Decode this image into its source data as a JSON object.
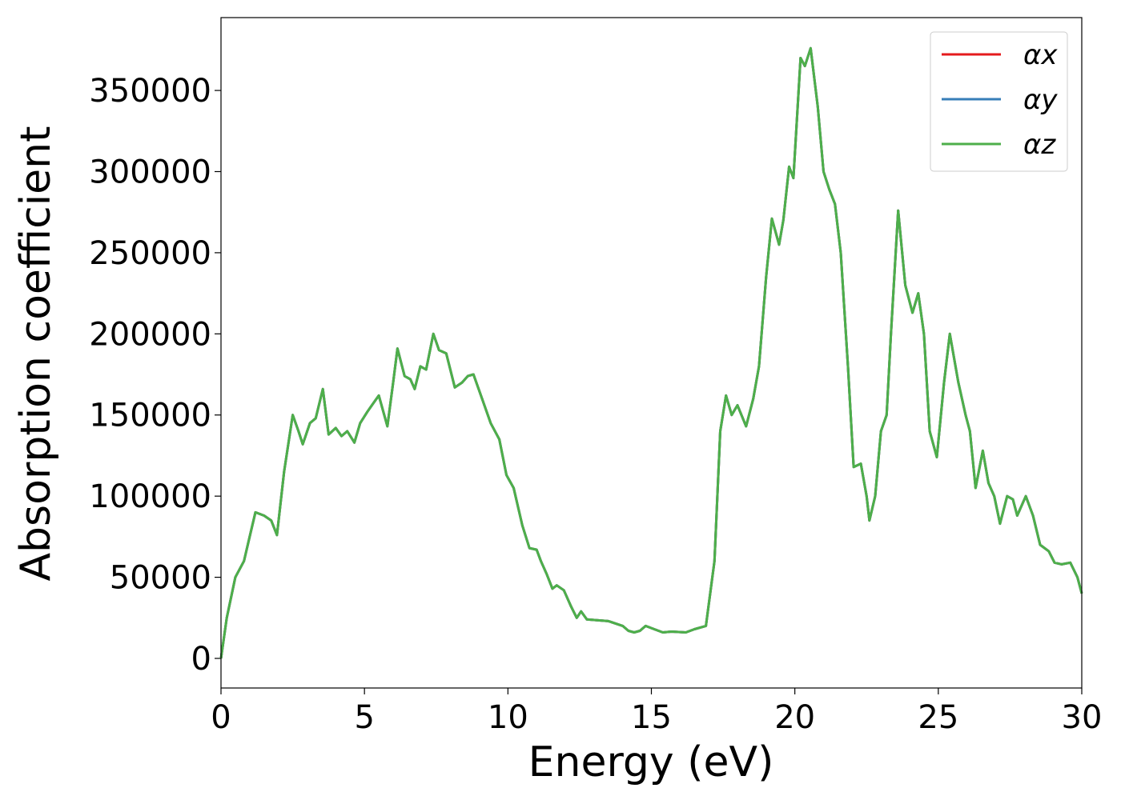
{
  "chart_data": {
    "type": "line",
    "xlabel": "Energy (eV)",
    "ylabel": "Absorption coefficient",
    "xlim": [
      0,
      30
    ],
    "xticks": [
      0,
      5,
      10,
      15,
      20,
      25,
      30
    ],
    "ylim": [
      -18240,
      394900
    ],
    "yticks": [
      0,
      50000,
      100000,
      150000,
      200000,
      250000,
      300000,
      350000
    ],
    "grid": false,
    "legend": "upper right",
    "x": [
      0,
      0.2,
      0.5,
      0.8,
      1.0,
      1.2,
      1.5,
      1.75,
      1.95,
      2.2,
      2.5,
      2.7,
      2.85,
      3.1,
      3.3,
      3.55,
      3.75,
      4.0,
      4.2,
      4.4,
      4.65,
      4.85,
      5.1,
      5.3,
      5.5,
      5.8,
      6.0,
      6.15,
      6.4,
      6.6,
      6.75,
      6.95,
      7.15,
      7.4,
      7.6,
      7.85,
      8.15,
      8.4,
      8.6,
      8.8,
      9.1,
      9.4,
      9.7,
      9.95,
      10.2,
      10.5,
      10.75,
      11.0,
      11.15,
      11.35,
      11.55,
      11.7,
      11.95,
      12.2,
      12.4,
      12.55,
      12.75,
      13.1,
      13.5,
      14.0,
      14.2,
      14.4,
      14.6,
      14.8,
      15.1,
      15.4,
      15.7,
      16.2,
      16.5,
      16.9,
      17.2,
      17.4,
      17.6,
      17.8,
      18.0,
      18.3,
      18.55,
      18.75,
      19.0,
      19.2,
      19.45,
      19.6,
      19.8,
      19.95,
      20.2,
      20.35,
      20.55,
      20.8,
      21.0,
      21.2,
      21.4,
      21.6,
      21.85,
      22.05,
      22.3,
      22.5,
      22.6,
      22.8,
      23.0,
      23.2,
      23.35,
      23.6,
      23.85,
      24.1,
      24.3,
      24.5,
      24.7,
      24.95,
      25.2,
      25.4,
      25.7,
      25.95,
      26.1,
      26.3,
      26.55,
      26.75,
      26.95,
      27.15,
      27.4,
      27.6,
      27.75,
      28.05,
      28.3,
      28.55,
      28.85,
      29.05,
      29.3,
      29.6,
      29.85,
      30
    ],
    "series": [
      {
        "name": "αx",
        "color": "#e41a1c",
        "values": [
          0,
          25000,
          50000,
          60000,
          75000,
          90000,
          88000,
          85000,
          76000,
          115000,
          150000,
          140000,
          132000,
          145000,
          148000,
          166000,
          138000,
          142000,
          137000,
          140000,
          133000,
          145000,
          152000,
          157000,
          162000,
          143000,
          170000,
          191000,
          174000,
          172000,
          166000,
          180000,
          178000,
          200000,
          190000,
          188000,
          167000,
          170000,
          174000,
          175000,
          160000,
          145000,
          135000,
          113000,
          105000,
          82000,
          68000,
          67000,
          60000,
          52000,
          43000,
          45000,
          42000,
          32000,
          25000,
          29000,
          24000,
          23500,
          23000,
          20000,
          17000,
          16000,
          17000,
          20000,
          18000,
          16000,
          16500,
          16000,
          18000,
          20000,
          60000,
          140000,
          162000,
          150000,
          156000,
          143000,
          160000,
          180000,
          235000,
          271000,
          255000,
          270000,
          303000,
          296000,
          370000,
          365000,
          376000,
          340000,
          300000,
          289000,
          280000,
          250000,
          180000,
          118000,
          120000,
          100000,
          85000,
          100000,
          140000,
          150000,
          200000,
          276000,
          230000,
          213000,
          225000,
          200000,
          140000,
          124000,
          170000,
          200000,
          170000,
          150000,
          140000,
          105000,
          128000,
          108000,
          100000,
          83000,
          100000,
          98000,
          88000,
          100000,
          88000,
          70000,
          66000,
          59000,
          58000,
          59000,
          50000,
          40000
        ]
      },
      {
        "name": "αy",
        "color": "#377eb8",
        "values": [
          0,
          25000,
          50000,
          60000,
          75000,
          90000,
          88000,
          85000,
          76000,
          115000,
          150000,
          140000,
          132000,
          145000,
          148000,
          166000,
          138000,
          142000,
          137000,
          140000,
          133000,
          145000,
          152000,
          157000,
          162000,
          143000,
          170000,
          191000,
          174000,
          172000,
          166000,
          180000,
          178000,
          200000,
          190000,
          188000,
          167000,
          170000,
          174000,
          175000,
          160000,
          145000,
          135000,
          113000,
          105000,
          82000,
          68000,
          67000,
          60000,
          52000,
          43000,
          45000,
          42000,
          32000,
          25000,
          29000,
          24000,
          23500,
          23000,
          20000,
          17000,
          16000,
          17000,
          20000,
          18000,
          16000,
          16500,
          16000,
          18000,
          20000,
          60000,
          140000,
          162000,
          150000,
          156000,
          143000,
          160000,
          180000,
          235000,
          271000,
          255000,
          270000,
          303000,
          296000,
          370000,
          365000,
          376000,
          340000,
          300000,
          289000,
          280000,
          250000,
          180000,
          118000,
          120000,
          100000,
          85000,
          100000,
          140000,
          150000,
          200000,
          276000,
          230000,
          213000,
          225000,
          200000,
          140000,
          124000,
          170000,
          200000,
          170000,
          150000,
          140000,
          105000,
          128000,
          108000,
          100000,
          83000,
          100000,
          98000,
          88000,
          100000,
          88000,
          70000,
          66000,
          59000,
          58000,
          59000,
          50000,
          40000
        ]
      },
      {
        "name": "αz",
        "color": "#4daf4a",
        "values": [
          0,
          25000,
          50000,
          60000,
          75000,
          90000,
          88000,
          85000,
          76000,
          115000,
          150000,
          140000,
          132000,
          145000,
          148000,
          166000,
          138000,
          142000,
          137000,
          140000,
          133000,
          145000,
          152000,
          157000,
          162000,
          143000,
          170000,
          191000,
          174000,
          172000,
          166000,
          180000,
          178000,
          200000,
          190000,
          188000,
          167000,
          170000,
          174000,
          175000,
          160000,
          145000,
          135000,
          113000,
          105000,
          82000,
          68000,
          67000,
          60000,
          52000,
          43000,
          45000,
          42000,
          32000,
          25000,
          29000,
          24000,
          23500,
          23000,
          20000,
          17000,
          16000,
          17000,
          20000,
          18000,
          16000,
          16500,
          16000,
          18000,
          20000,
          60000,
          140000,
          162000,
          150000,
          156000,
          143000,
          160000,
          180000,
          235000,
          271000,
          255000,
          270000,
          303000,
          296000,
          370000,
          365000,
          376000,
          340000,
          300000,
          289000,
          280000,
          250000,
          180000,
          118000,
          120000,
          100000,
          85000,
          100000,
          140000,
          150000,
          200000,
          276000,
          230000,
          213000,
          225000,
          200000,
          140000,
          124000,
          170000,
          200000,
          170000,
          150000,
          140000,
          105000,
          128000,
          108000,
          100000,
          83000,
          100000,
          98000,
          88000,
          100000,
          88000,
          70000,
          66000,
          59000,
          58000,
          59000,
          50000,
          40000
        ]
      }
    ]
  }
}
